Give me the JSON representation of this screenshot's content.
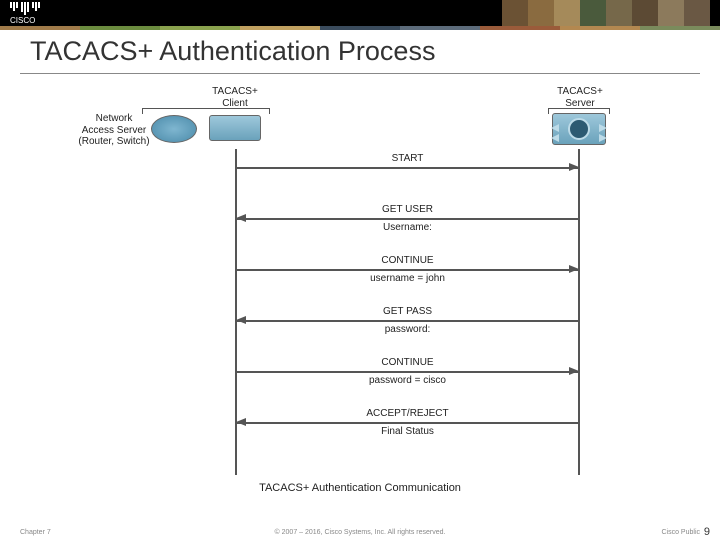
{
  "title": "TACACS+ Authentication Process",
  "entities": {
    "networkAccess": "Network\nAccess Server\n(Router, Switch)",
    "client": "TACACS+\nClient",
    "server": "TACACS+\nServer"
  },
  "messages": [
    {
      "dir": "right",
      "label": "START",
      "sub": ""
    },
    {
      "dir": "left",
      "label": "GET USER",
      "sub": "Username:"
    },
    {
      "dir": "right",
      "label": "CONTINUE",
      "sub": "username = john"
    },
    {
      "dir": "left",
      "label": "GET PASS",
      "sub": "password:"
    },
    {
      "dir": "right",
      "label": "CONTINUE",
      "sub": "password = cisco"
    },
    {
      "dir": "left",
      "label": "ACCEPT/REJECT",
      "sub": "Final Status"
    }
  ],
  "caption": "TACACS+ Authentication Communication",
  "rowStartTop": 93,
  "rowGap": 51,
  "colors": {
    "headerPalette": [
      "#a07b4a",
      "#6b8c3f",
      "#8aa24e",
      "#c0a060",
      "#3a4b5c",
      "#5c6b7a",
      "#9a5b3a",
      "#b38850",
      "#7a8b5c"
    ],
    "lifeline": "#555555",
    "text": "#222222"
  },
  "footer": {
    "chapter": "Chapter 7",
    "copyright": "© 2007 – 2016, Cisco Systems, Inc. All rights reserved.",
    "classification": "Cisco Public",
    "page": "9"
  }
}
